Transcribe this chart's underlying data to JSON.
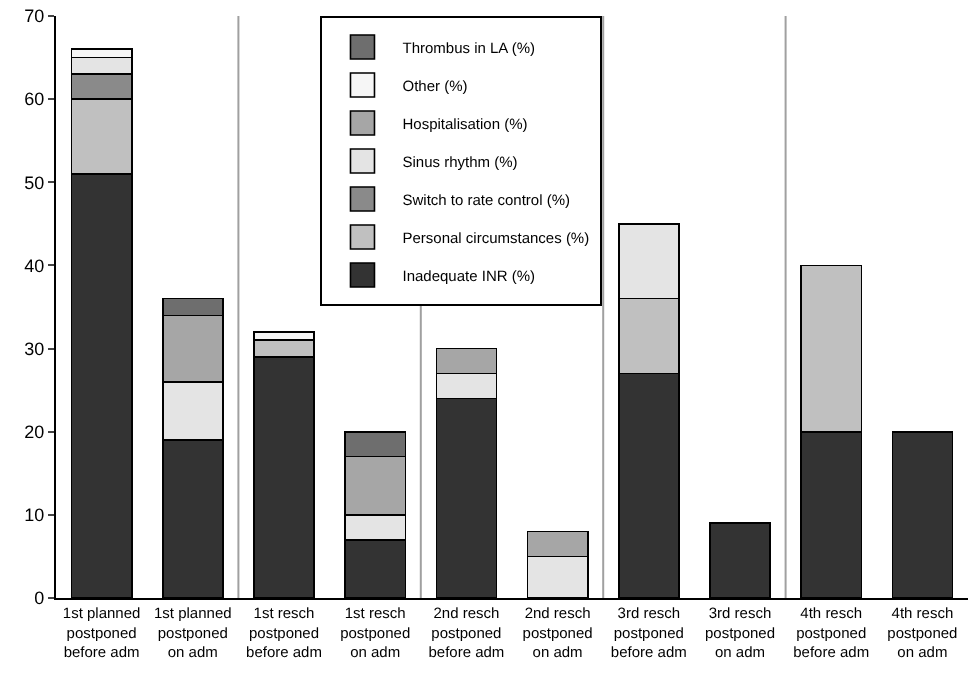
{
  "chart_data": {
    "type": "bar",
    "stacked": true,
    "categories": [
      "1st planned postponed before adm",
      "1st planned postponed on adm",
      "1st resch postponed before adm",
      "1st resch postponed on adm",
      "2nd resch postponed before adm",
      "2nd resch postponed on adm",
      "3rd resch postponed before adm",
      "3rd resch postponed on adm",
      "4th resch postponed before adm",
      "4th resch postponed on adm"
    ],
    "series": [
      {
        "name": "Inadequate INR (%)",
        "color": "#333333",
        "values": [
          51,
          19,
          29,
          7,
          24,
          null,
          27,
          9,
          20,
          20
        ]
      },
      {
        "name": "Personal circumstances (%)",
        "color": "#c0c0c0",
        "values": [
          9,
          null,
          2,
          null,
          null,
          null,
          9,
          null,
          20,
          null
        ]
      },
      {
        "name": "Switch to rate control (%)",
        "color": "#8a8a8a",
        "values": [
          3,
          null,
          null,
          null,
          null,
          null,
          null,
          null,
          null,
          null
        ]
      },
      {
        "name": "Sinus rhythm (%)",
        "color": "#e4e4e4",
        "values": [
          2,
          7,
          null,
          3,
          3,
          5,
          9,
          null,
          null,
          null
        ]
      },
      {
        "name": "Hospitalisation (%)",
        "color": "#a6a6a6",
        "values": [
          null,
          8,
          null,
          7,
          3,
          3,
          null,
          null,
          null,
          null
        ]
      },
      {
        "name": "Other (%)",
        "color": "#f6f6f6",
        "values": [
          1,
          null,
          1,
          null,
          null,
          null,
          null,
          null,
          null,
          null
        ]
      },
      {
        "name": "Thrombus in LA (%)",
        "color": "#6e6e6e",
        "values": [
          null,
          2,
          null,
          3,
          null,
          null,
          null,
          null,
          null,
          null
        ]
      }
    ],
    "ylim": [
      0,
      70
    ],
    "yticks": [
      0,
      10,
      20,
      30,
      40,
      50,
      60,
      70
    ],
    "grid": false,
    "legend": "top"
  }
}
